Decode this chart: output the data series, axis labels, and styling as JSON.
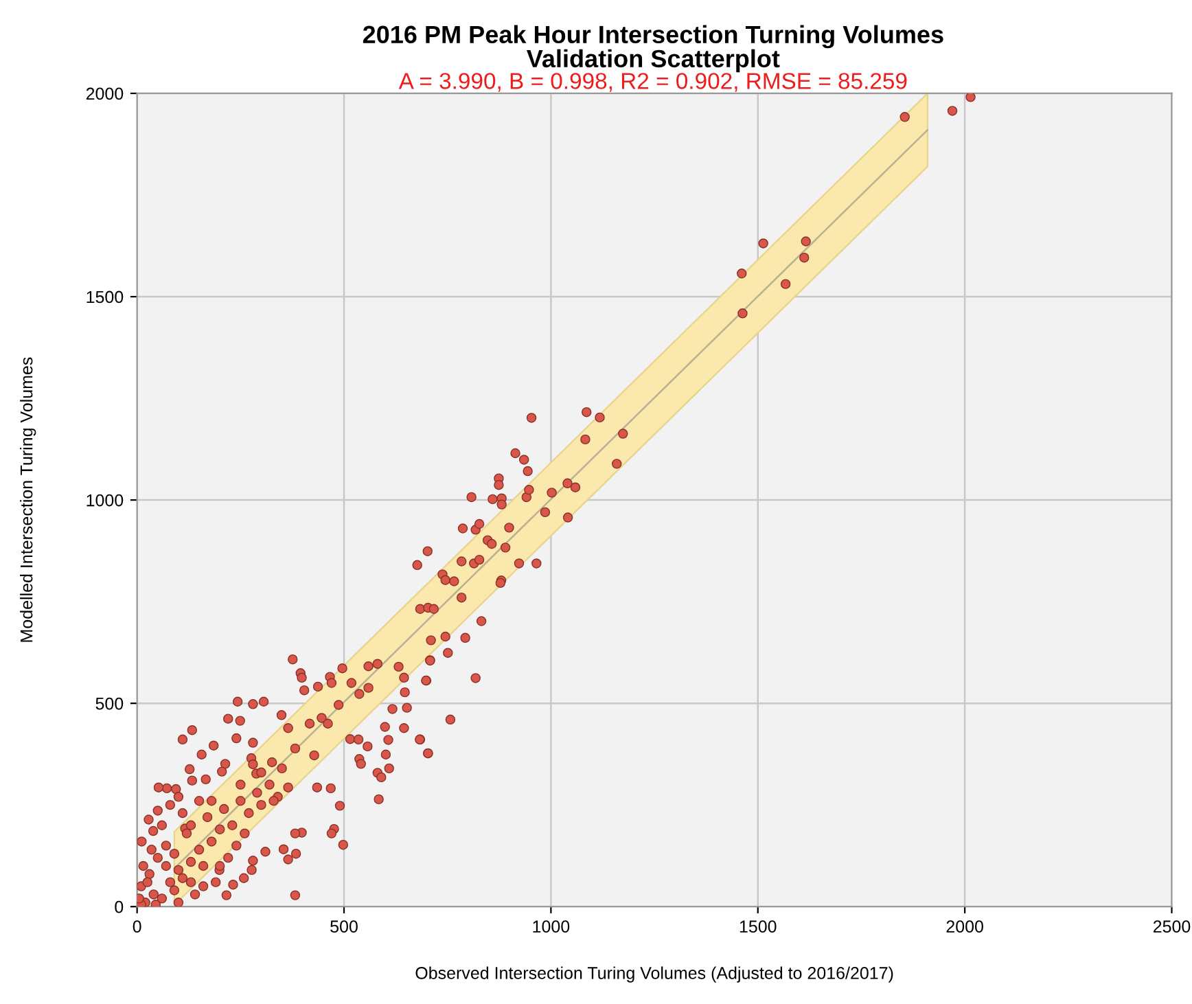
{
  "chart_data": {
    "type": "scatter",
    "title": "2016 PM Peak Hour Intersection Turning Volumes\nValidation Scatterplot",
    "subtitle": "A = 3.990, B = 0.998, R2 = 0.902, RMSE = 85.259",
    "xlabel": "Observed Intersection Turing Volumes (Adjusted to 2016/2017)",
    "ylabel": "Modelled Intersection Turing Volumes",
    "xlim": [
      0,
      2500
    ],
    "ylim": [
      0,
      2000
    ],
    "xticks": [
      0,
      500,
      1000,
      1500,
      2000,
      2500
    ],
    "yticks": [
      0,
      500,
      1000,
      1500,
      2000
    ],
    "grid": true,
    "marker": "circle",
    "series": [
      {
        "type": "line",
        "marker": "none",
        "color": "#b8b090",
        "x": [
          90,
          1910
        ],
        "values": [
          94,
          1910
        ],
        "lower": [
          4,
          1820
        ],
        "upper": [
          184,
          2000
        ]
      },
      {
        "type": "scatter",
        "color": "#d9574a",
        "x": [
          2014,
          1970,
          1855,
          1513,
          1616,
          1612,
          1567,
          1461,
          1463,
          953,
          1086,
          1118,
          1083,
          1174,
          1159,
          914,
          935,
          944,
          874,
          874,
          808,
          859,
          881,
          881,
          941,
          947,
          1002,
          1040,
          1059,
          986,
          1041,
          787,
          818,
          827,
          899,
          847,
          857,
          890,
          702,
          677,
          784,
          814,
          827,
          923,
          965,
          738,
          745,
          766,
          880,
          878,
          784,
          684,
          703,
          717,
          832,
          710,
          745,
          793,
          751,
          708,
          699,
          818,
          757,
          684,
          703,
          376,
          395,
          398,
          243,
          280,
          306,
          404,
          437,
          466,
          470,
          496,
          559,
          581,
          632,
          708,
          698,
          647,
          645,
          518,
          537,
          559,
          487,
          617,
          652,
          220,
          249,
          349,
          365,
          417,
          446,
          461,
          599,
          645,
          133,
          110,
          185,
          240,
          280,
          515,
          535,
          557,
          607,
          683,
          703,
          156,
          213,
          276,
          326,
          382,
          428,
          537,
          541,
          601,
          609,
          581,
          590,
          127,
          133,
          72,
          94,
          52,
          166,
          205,
          288,
          340,
          365,
          435,
          468,
          490,
          584,
          476,
          470,
          498,
          398,
          382,
          354,
          365,
          384,
          310,
          280,
          277,
          258,
          382,
          216,
          199,
          232,
          39,
          11,
          50,
          28,
          116,
          20,
          40,
          60,
          80,
          100,
          30,
          50,
          70,
          90,
          110,
          130,
          150,
          120,
          160,
          180,
          200,
          170,
          210,
          230,
          250,
          240,
          270,
          290,
          300,
          190,
          140,
          100,
          10,
          15,
          35,
          60,
          80,
          150,
          110,
          220,
          260,
          320,
          330,
          350,
          300,
          280,
          250,
          10,
          5,
          25,
          45,
          70,
          90,
          130,
          160,
          200,
          180,
          130,
          100
        ],
        "values": [
          1991,
          1957,
          1942,
          1631,
          1636,
          1596,
          1531,
          1557,
          1459,
          1202,
          1216,
          1203,
          1149,
          1163,
          1089,
          1115,
          1099,
          1071,
          1053,
          1037,
          1007,
          1002,
          1004,
          989,
          1007,
          1025,
          1018,
          1041,
          1031,
          970,
          957,
          930,
          927,
          941,
          932,
          901,
          892,
          883,
          874,
          840,
          849,
          844,
          853,
          844,
          844,
          817,
          803,
          800,
          802,
          796,
          760,
          732,
          735,
          732,
          702,
          655,
          664,
          661,
          624,
          606,
          556,
          562,
          460,
          411,
          377,
          608,
          574,
          563,
          504,
          498,
          504,
          532,
          541,
          565,
          550,
          586,
          591,
          597,
          590,
          605,
          556,
          527,
          563,
          550,
          523,
          538,
          496,
          486,
          489,
          462,
          457,
          471,
          439,
          450,
          464,
          450,
          442,
          439,
          434,
          411,
          396,
          414,
          403,
          412,
          411,
          394,
          410,
          411,
          377,
          374,
          351,
          365,
          355,
          389,
          372,
          363,
          351,
          374,
          340,
          329,
          318,
          338,
          310,
          291,
          289,
          293,
          313,
          332,
          327,
          270,
          293,
          293,
          291,
          248,
          264,
          191,
          180,
          152,
          182,
          180,
          141,
          116,
          130,
          135,
          113,
          90,
          70,
          28,
          28,
          90,
          54,
          186,
          160,
          236,
          214,
          192,
          10,
          30,
          20,
          60,
          90,
          80,
          120,
          150,
          40,
          70,
          110,
          140,
          180,
          100,
          160,
          190,
          220,
          240,
          200,
          260,
          150,
          230,
          280,
          250,
          60,
          30,
          10,
          50,
          100,
          140,
          200,
          250,
          260,
          230,
          120,
          180,
          300,
          260,
          340,
          330,
          350,
          300,
          5,
          20,
          60,
          5,
          100,
          130,
          60,
          50,
          100,
          260,
          200,
          270
        ]
      }
    ]
  }
}
